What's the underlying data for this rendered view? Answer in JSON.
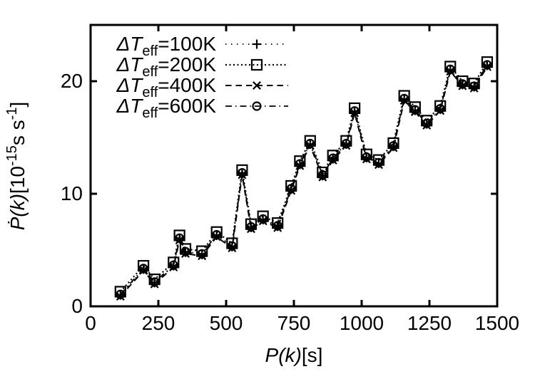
{
  "colors": {
    "ink": "#000000",
    "background": "#ffffff"
  },
  "chart_data": {
    "type": "line",
    "title": "",
    "xlabel": "P(k)[s]",
    "ylabel": "Ṗ(k)[10^-15 s s^-1]",
    "xlabel_parts": {
      "italic": "P(k)",
      "rest": "[s]"
    },
    "ylabel_parts": {
      "p1": "Ṗ(k)",
      "p2": "[10",
      "sup1": "-15",
      "p3": "s s",
      "sup2": "-1",
      "p4": "]"
    },
    "xlim": [
      0,
      1500
    ],
    "ylim": [
      0,
      25
    ],
    "x_ticks": [
      0,
      250,
      500,
      750,
      1000,
      1250,
      1500
    ],
    "x_tick_labels": [
      "0",
      "250",
      "500",
      "750",
      "1000",
      "1250",
      "1500"
    ],
    "y_ticks": [
      0,
      10,
      20
    ],
    "y_tick_labels": [
      "0",
      "10",
      "20"
    ],
    "grid": false,
    "legend_position": "top-left-inside",
    "x": [
      110,
      195,
      236,
      306,
      328,
      350,
      411,
      465,
      522,
      559,
      592,
      636,
      690,
      740,
      772,
      810,
      856,
      894,
      943,
      974,
      1018,
      1063,
      1117,
      1157,
      1197,
      1240,
      1290,
      1327,
      1372,
      1415,
      1463
    ],
    "y_base": [
      1.0,
      3.3,
      2.1,
      3.6,
      6.0,
      4.8,
      4.6,
      6.3,
      5.3,
      11.8,
      7.0,
      7.7,
      7.1,
      10.4,
      12.6,
      14.4,
      11.6,
      13.1,
      14.4,
      17.3,
      13.2,
      12.7,
      14.2,
      18.4,
      17.4,
      16.2,
      17.5,
      21.0,
      19.7,
      19.5,
      21.4
    ],
    "series": [
      {
        "id": "100K",
        "legend_base": "ΔT",
        "legend_sub": "eff",
        "legend_rest": "=100K",
        "marker": "plus",
        "line_style": "dot-sparse",
        "y_offset": 0
      },
      {
        "id": "200K",
        "legend_base": "ΔT",
        "legend_sub": "eff",
        "legend_rest": "=200K",
        "marker": "square",
        "line_style": "dot-dense",
        "y_offset": 0.3
      },
      {
        "id": "400K",
        "legend_base": "ΔT",
        "legend_sub": "eff",
        "legend_rest": "=400K",
        "marker": "cross",
        "line_style": "dash",
        "y_offset": -0.12
      },
      {
        "id": "600K",
        "legend_base": "ΔT",
        "legend_sub": "eff",
        "legend_rest": "=600K",
        "marker": "circle",
        "line_style": "dash-dot",
        "y_offset": 0.06
      }
    ]
  }
}
